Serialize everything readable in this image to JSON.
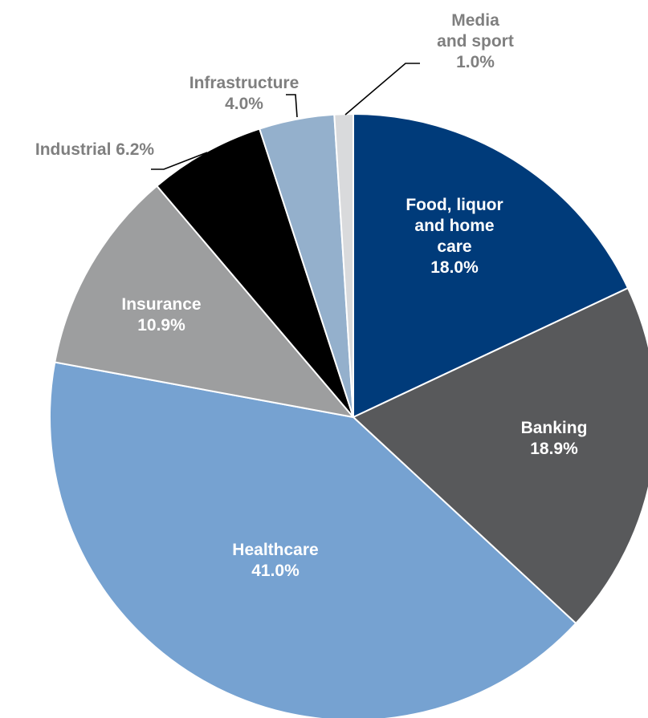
{
  "chart_data": {
    "type": "pie",
    "start_angle_deg": 0,
    "direction": "clockwise",
    "slices": [
      {
        "label_lines": [
          "Food, liquor",
          "and home",
          "care"
        ],
        "value_text": "18.0%",
        "value": 18.0,
        "color": "#003B7A",
        "label_color": "#FFFFFF",
        "label_position": "inside"
      },
      {
        "label_lines": [
          "Banking"
        ],
        "value_text": "18.9%",
        "value": 18.9,
        "color": "#58595B",
        "label_color": "#FFFFFF",
        "label_position": "inside"
      },
      {
        "label_lines": [
          "Healthcare"
        ],
        "value_text": "41.0%",
        "value": 41.0,
        "color": "#76A2D1",
        "label_color": "#FFFFFF",
        "label_position": "inside"
      },
      {
        "label_lines": [
          "Insurance"
        ],
        "value_text": "10.9%",
        "value": 10.9,
        "color": "#9D9E9F",
        "label_color": "#FFFFFF",
        "label_position": "inside"
      },
      {
        "label_lines": [
          "Industrial 6.2%"
        ],
        "value_text": "",
        "value": 6.2,
        "color": "#000000",
        "label_color": "#7F7F7F",
        "label_position": "outside"
      },
      {
        "label_lines": [
          "Infrastructure"
        ],
        "value_text": "4.0%",
        "value": 4.0,
        "color": "#94B0CC",
        "label_color": "#7F7F7F",
        "label_position": "outside"
      },
      {
        "label_lines": [
          "Media",
          "and sport"
        ],
        "value_text": "1.0%",
        "value": 1.0,
        "color": "#D9DADC",
        "label_color": "#7F7F7F",
        "label_position": "outside"
      }
    ]
  }
}
